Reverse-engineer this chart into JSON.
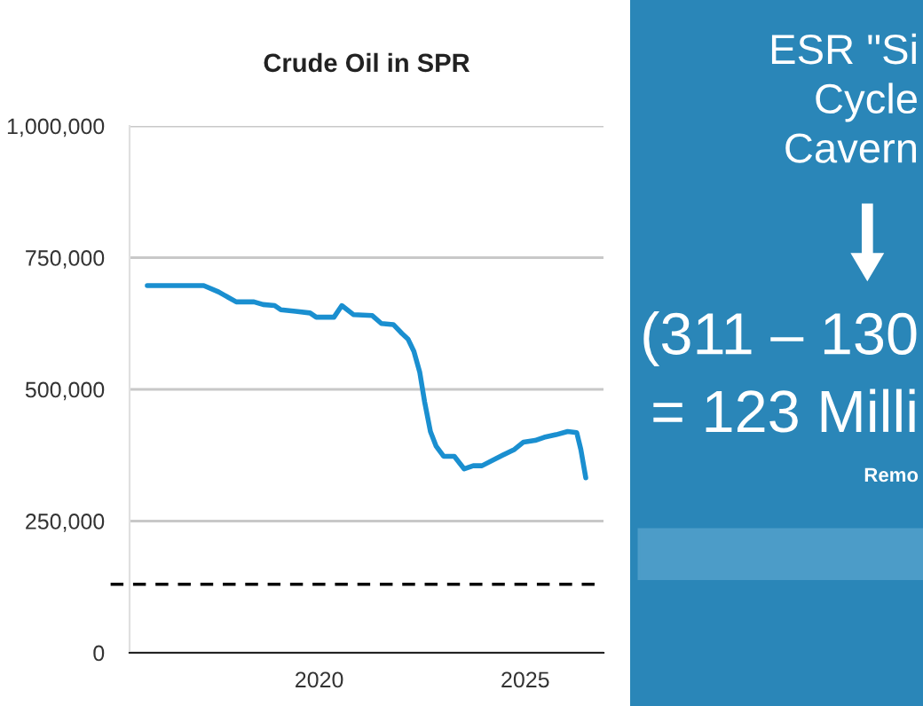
{
  "chart_data": [
    {
      "type": "line",
      "title": "Crude Oil in SPR",
      "x": [
        2015.83,
        2017.2,
        2017.56,
        2017.99,
        2018.42,
        2018.64,
        2018.92,
        2019.07,
        2019.43,
        2019.78,
        2019.93,
        2020.36,
        2020.55,
        2020.83,
        2021.29,
        2021.51,
        2021.8,
        2022.01,
        2022.16,
        2022.3,
        2022.44,
        2022.56,
        2022.7,
        2022.84,
        2023.02,
        2023.28,
        2023.52,
        2023.74,
        2023.95,
        2024.45,
        2024.74,
        2024.96,
        2025.24,
        2025.46,
        2025.75,
        2026.03,
        2026.25,
        2026.35,
        2026.47
      ],
      "series": [
        {
          "color": "#1a8fd0",
          "values": [
            697000,
            697000,
            685000,
            666000,
            666000,
            661000,
            659000,
            651000,
            648000,
            645000,
            637000,
            637000,
            659000,
            642000,
            640000,
            625000,
            623000,
            606000,
            595000,
            572000,
            533000,
            476000,
            420000,
            392000,
            373000,
            373000,
            349000,
            355000,
            355000,
            375000,
            386000,
            400000,
            403000,
            409000,
            414000,
            420000,
            418000,
            386000,
            332000
          ]
        }
      ],
      "xlim": [
        2015.4,
        2026.9
      ],
      "xticks": [
        2020,
        2025
      ],
      "ylim": [
        0,
        1000000
      ],
      "yticks": [
        0,
        {
          "value": 250000,
          "label": "250,000"
        },
        {
          "value": 500000,
          "label": "500,000"
        },
        {
          "value": 750000,
          "label": "750,000"
        },
        {
          "value": 1000000,
          "label": "1,000,000"
        }
      ],
      "ref_lines": [
        {
          "axis": "y",
          "value": 130000,
          "color": "#000000",
          "line_style": "dashed"
        }
      ],
      "grid": "y",
      "legend": false,
      "marker": "none",
      "line_style": "solid"
    },
    {
      "type": "other",
      "annotations": [
        "ESR \"Si",
        "Cycle",
        "Cavern",
        "(311 – 130",
        "= 123 Milli",
        "Remo"
      ]
    }
  ]
}
